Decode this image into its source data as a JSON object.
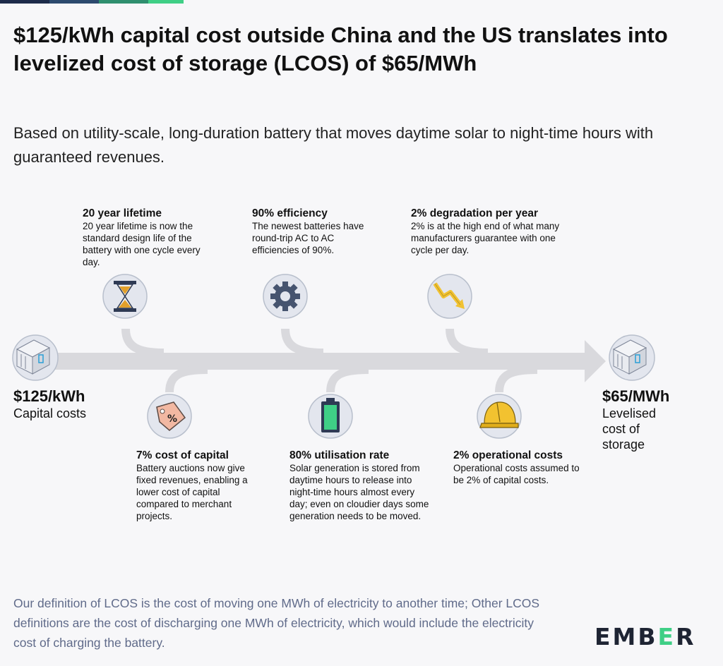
{
  "colors": {
    "topbar": [
      "#1d2b4a",
      "#2c4a6e",
      "#2f8f6f",
      "#3fcf86"
    ],
    "arrow": "#d9d9dd",
    "circle_fill": "#e3e6ee",
    "circle_stroke": "#b8bfcc",
    "footer_text": "#606b8a",
    "logo_accent": "#3fcf86"
  },
  "title": "$125/kWh capital cost outside China and the US translates into levelized cost of storage (LCOS) of $65/MWh",
  "subtitle": "Based on utility-scale, long-duration battery that moves daytime solar to night-time hours with guaranteed revenues.",
  "start": {
    "value": "$125/kWh",
    "label": "Capital costs",
    "icon": "battery-container-icon"
  },
  "end": {
    "value": "$65/MWh",
    "label_lines": [
      "Levelised",
      "cost of",
      "storage"
    ],
    "icon": "battery-container-icon"
  },
  "factors_top": [
    {
      "title": "20 year lifetime",
      "text": "20 year lifetime is now the standard design life of the battery with one cycle every day.",
      "icon": "hourglass-icon"
    },
    {
      "title": "90% efficiency",
      "text": "The newest batteries have round-trip AC to AC efficiencies of 90%.",
      "icon": "gear-icon"
    },
    {
      "title": "2% degradation per year",
      "text": "2% is at the high end of what many manufacturers guarantee with one cycle per day.",
      "icon": "downtrend-arrow-icon"
    }
  ],
  "factors_bottom": [
    {
      "title": "7% cost of capital",
      "text": "Battery auctions now give fixed revenues, enabling a lower cost of capital compared to merchant projects.",
      "icon": "percent-tag-icon"
    },
    {
      "title": "80% utilisation rate",
      "text": "Solar generation is stored from daytime hours to release into night-time hours almost every day; even on cloudier days some generation needs to be moved.",
      "icon": "battery-charge-icon"
    },
    {
      "title": "2% operational costs",
      "text": "Operational costs assumed to be 2% of capital costs.",
      "icon": "hard-hat-icon"
    }
  ],
  "footer": "Our definition of LCOS is the cost of moving one MWh of electricity to another time; Other LCOS definitions are the cost of discharging one MWh of electricity, which would include the electricity cost of charging the battery.",
  "logo": {
    "text_part1": "EMB",
    "text_accent": "E",
    "text_part2": "R"
  }
}
